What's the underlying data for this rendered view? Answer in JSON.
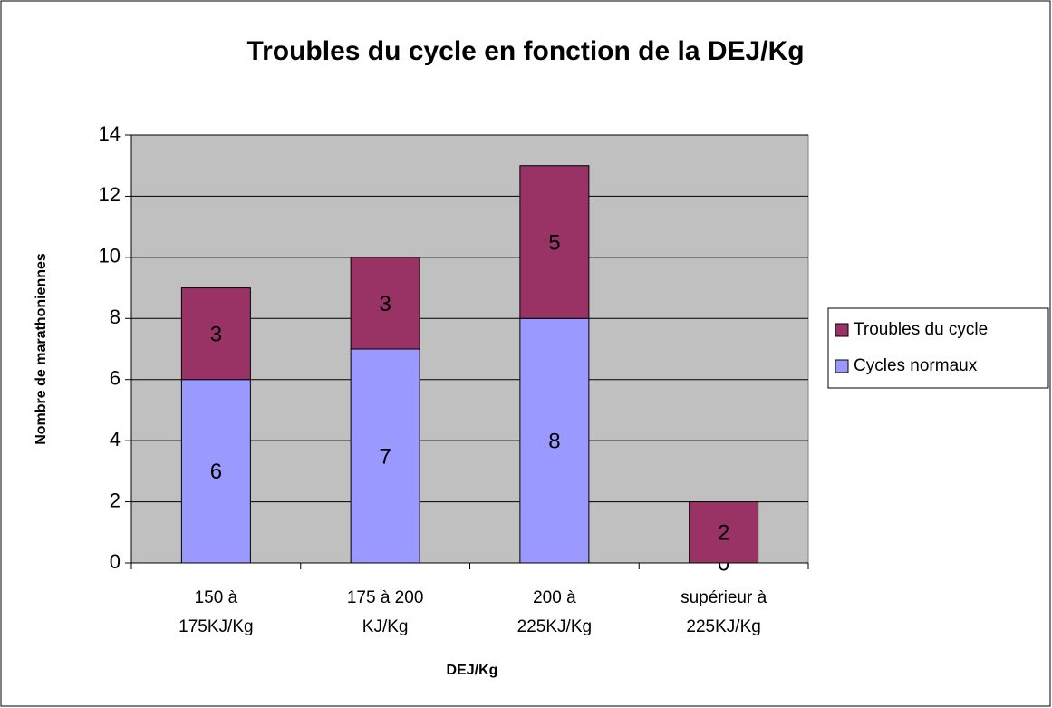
{
  "chart_data": {
    "type": "stacked_bar",
    "title": "Troubles du cycle en fonction de la DEJ/Kg",
    "x_label": "DEJ/Kg",
    "y_label": "Nombre de marathoniennes",
    "categories": [
      "150 à\n175KJ/Kg",
      "175 à 200\nKJ/Kg",
      "200 à\n225KJ/Kg",
      "supérieur à\n225KJ/Kg"
    ],
    "series": [
      {
        "name": "Cycles normaux",
        "color": "#9999ff",
        "values": [
          6,
          7,
          8,
          0
        ]
      },
      {
        "name": "Troubles du cycle",
        "color": "#993366",
        "values": [
          3,
          3,
          5,
          2
        ]
      }
    ],
    "ylim": [
      0,
      14
    ],
    "yticks": [
      0,
      2,
      4,
      6,
      8,
      10,
      12,
      14
    ],
    "grid": true,
    "legend": "right"
  }
}
